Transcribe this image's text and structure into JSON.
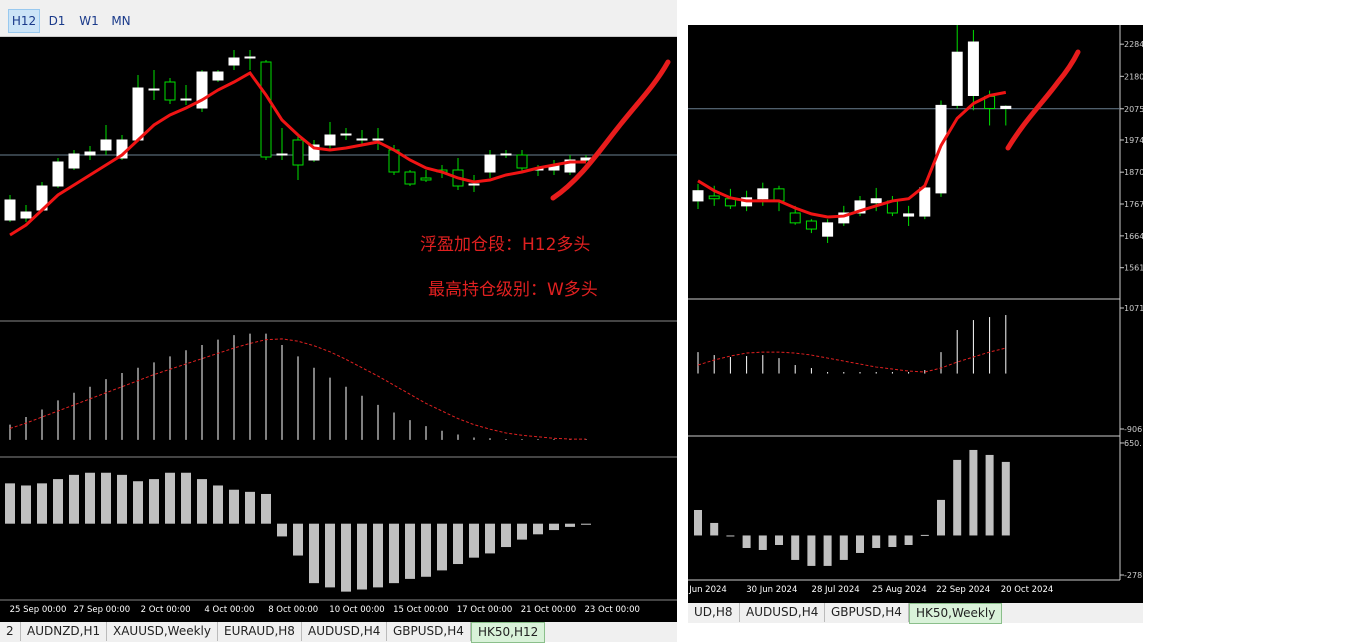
{
  "toolbar": {
    "buttons": [
      "H12",
      "D1",
      "W1",
      "MN"
    ]
  },
  "left_chart": {
    "ylim": [
      0,
      280
    ],
    "open": [
      100,
      102,
      110,
      134,
      152,
      165,
      170,
      162,
      180,
      230,
      238,
      220,
      212,
      240,
      255,
      262,
      258,
      165,
      180,
      160,
      175,
      185,
      180,
      180,
      170,
      148,
      142,
      150,
      150,
      135,
      148,
      165,
      165,
      150,
      150,
      148,
      160
    ],
    "high": [
      125,
      115,
      138,
      162,
      170,
      174,
      195,
      185,
      245,
      250,
      242,
      235,
      250,
      250,
      270,
      270,
      260,
      192,
      185,
      180,
      198,
      192,
      190,
      192,
      175,
      150,
      150,
      155,
      162,
      145,
      170,
      170,
      170,
      155,
      160,
      165,
      165
    ],
    "low": [
      98,
      98,
      108,
      132,
      150,
      160,
      165,
      160,
      178,
      220,
      216,
      215,
      208,
      238,
      250,
      250,
      160,
      160,
      140,
      158,
      170,
      180,
      175,
      170,
      145,
      134,
      138,
      142,
      130,
      128,
      142,
      162,
      148,
      144,
      145,
      145,
      158
    ],
    "close": [
      120,
      108,
      134,
      158,
      166,
      168,
      180,
      180,
      232,
      231,
      220,
      221,
      248,
      248,
      262,
      263,
      163,
      166,
      155,
      175,
      185,
      186,
      181,
      181,
      148,
      136,
      140,
      148,
      134,
      136,
      165,
      166,
      152,
      151,
      155,
      160,
      162
    ],
    "ma": [
      85,
      95,
      110,
      125,
      135,
      145,
      155,
      165,
      180,
      195,
      205,
      212,
      220,
      230,
      238,
      247,
      225,
      200,
      185,
      172,
      170,
      172,
      175,
      178,
      170,
      160,
      152,
      148,
      142,
      138,
      140,
      145,
      148,
      152,
      155,
      158,
      158
    ],
    "osc": {
      "ylim": [
        -20,
        150
      ],
      "values": [
        20,
        30,
        40,
        52,
        62,
        70,
        80,
        88,
        95,
        102,
        110,
        118,
        125,
        132,
        138,
        140,
        140,
        125,
        110,
        95,
        82,
        70,
        58,
        46,
        36,
        26,
        18,
        12,
        7,
        3,
        2,
        1,
        1,
        1,
        1,
        1,
        1
      ],
      "signal": [
        15,
        22,
        30,
        38,
        46,
        54,
        62,
        70,
        78,
        86,
        93,
        100,
        107,
        114,
        121,
        127,
        132,
        133,
        130,
        124,
        116,
        106,
        95,
        84,
        72,
        60,
        48,
        38,
        28,
        20,
        14,
        9,
        6,
        4,
        2,
        1,
        1
      ]
    },
    "hist": {
      "ylim": [
        -70,
        60
      ],
      "values": [
        38,
        36,
        38,
        42,
        46,
        48,
        48,
        46,
        40,
        42,
        48,
        48,
        42,
        36,
        32,
        30,
        28,
        -12,
        -30,
        -56,
        -60,
        -64,
        -62,
        -60,
        -56,
        -52,
        -50,
        -44,
        -38,
        -32,
        -28,
        -22,
        -15,
        -10,
        -6,
        -3,
        -1
      ]
    },
    "xlabels": [
      "25 Sep 00:00",
      "27 Sep 00:00",
      "2 Oct 00:00",
      "4 Oct 00:00",
      "8 Oct 00:00",
      "10 Oct 00:00",
      "15 Oct 00:00",
      "17 Oct 00:00",
      "21 Oct 00:00",
      "23 Oct 00:00"
    ],
    "annotations": [
      "浮盈加仓段：H12多头",
      "最高持仓级别：W多头"
    ],
    "tabs": [
      "2",
      "AUDNZD,H1",
      "XAUUSD,Weekly",
      "EURAUD,H8",
      "AUDUSD,H4",
      "GBPUSD,H4",
      "HK50,H12"
    ]
  },
  "right_chart": {
    "ylim": [
      1463,
      2346
    ],
    "yticks": [
      2284,
      2180,
      2075,
      1974,
      1870,
      1767,
      1664,
      1561
    ],
    "open": [
      1777,
      1793,
      1784,
      1761,
      1784,
      1816,
      1738,
      1712,
      1663,
      1706,
      1738,
      1771,
      1777,
      1728,
      1728,
      1803,
      2086,
      2118,
      2115,
      2076
    ],
    "high": [
      1832,
      1826,
      1816,
      1810,
      1836,
      1826,
      1761,
      1718,
      1718,
      1761,
      1793,
      1819,
      1793,
      1761,
      1829,
      2102,
      2346,
      2330,
      2134,
      2086
    ],
    "low": [
      1751,
      1761,
      1751,
      1744,
      1761,
      1744,
      1700,
      1673,
      1641,
      1696,
      1728,
      1744,
      1728,
      1696,
      1718,
      1790,
      2076,
      2070,
      2021,
      2021
    ],
    "close": [
      1810,
      1784,
      1761,
      1787,
      1816,
      1777,
      1706,
      1686,
      1706,
      1738,
      1777,
      1784,
      1738,
      1735,
      1819,
      2086,
      2258,
      2291,
      2076,
      2083
    ],
    "ma": [
      1842,
      1810,
      1787,
      1777,
      1777,
      1777,
      1754,
      1735,
      1725,
      1728,
      1745,
      1761,
      1777,
      1784,
      1826,
      1956,
      2044,
      2092,
      2118,
      2128
    ],
    "osc": {
      "ylim": [
        -1004,
        1169
      ],
      "yticks": [
        1071,
        -906
      ],
      "values": [
        351,
        302,
        270,
        286,
        302,
        253,
        139,
        90,
        25,
        25,
        25,
        25,
        25,
        25,
        57,
        351,
        711,
        874,
        923,
        956
      ],
      "signal": [
        139,
        221,
        286,
        335,
        351,
        351,
        335,
        302,
        253,
        204,
        155,
        106,
        74,
        41,
        25,
        90,
        188,
        270,
        351,
        417
      ]
    },
    "hist": {
      "ylim": [
        -313,
        685
      ],
      "yticks": [
        {
          "value": 650,
          "label": "650."
        },
        -278
      ],
      "values": [
        179,
        88,
        -3,
        -88,
        -102,
        -67,
        -172,
        -214,
        -214,
        -172,
        -123,
        -88,
        -81,
        -67,
        4,
        250,
        531,
        601,
        566,
        517
      ]
    },
    "xlabels": [
      "Jun 2024",
      "30 Jun 2024",
      "28 Jul 2024",
      "25 Aug 2024",
      "22 Sep 2024",
      "20 Oct 2024"
    ],
    "tabs": [
      "UD,H8",
      "AUDUSD,H4",
      "GBPUSD,H4",
      "HK50,Weekly"
    ]
  }
}
